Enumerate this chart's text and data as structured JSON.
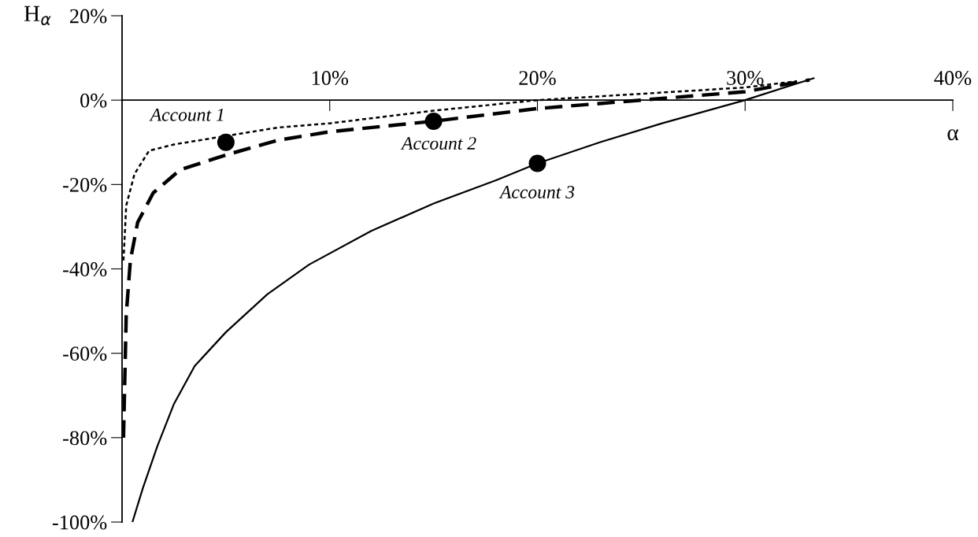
{
  "chart_data": {
    "type": "line",
    "xlabel": "α",
    "ylabel": "H$_{α}$",
    "xlim": [
      0,
      40
    ],
    "ylim": [
      -100,
      20
    ],
    "xticks": [
      {
        "value": 10,
        "label": "10%"
      },
      {
        "value": 20,
        "label": "20%"
      },
      {
        "value": 30,
        "label": "30%"
      },
      {
        "value": 40,
        "label": "40%"
      }
    ],
    "yticks": [
      {
        "value": -100,
        "label": "-100%"
      },
      {
        "value": -80,
        "label": "-80%"
      },
      {
        "value": -60,
        "label": "-60%"
      },
      {
        "value": -40,
        "label": "-40%"
      },
      {
        "value": -20,
        "label": "-20%"
      },
      {
        "value": 0,
        "label": "0%"
      },
      {
        "value": 20,
        "label": "20%"
      }
    ],
    "grid": false,
    "legend": false,
    "series": [
      {
        "color": "#000000",
        "line_style": "dotted",
        "x": [
          0.07,
          0.2,
          0.6,
          1.3,
          2.5,
          5,
          7.5,
          10,
          15,
          20,
          25,
          30,
          32.5
        ],
        "values": [
          -38,
          -25,
          -17.5,
          -12,
          -10.5,
          -8.5,
          -6.5,
          -5.5,
          -2.5,
          0,
          1.5,
          3,
          4.5
        ]
      },
      {
        "color": "#000000",
        "line_style": "dashed",
        "x": [
          0.07,
          0.2,
          0.4,
          0.75,
          1.5,
          2.8,
          5,
          7.5,
          10,
          15,
          20,
          25,
          30,
          33.1
        ],
        "values": [
          -80,
          -51,
          -38,
          -29,
          -22,
          -16.5,
          -13,
          -9.5,
          -7.5,
          -5,
          -2,
          0,
          2,
          4.8
        ]
      },
      {
        "color": "#000000",
        "line_style": "solid",
        "x": [
          0.5,
          1,
          1.7,
          2.5,
          3.5,
          5,
          7,
          9,
          12,
          15,
          18,
          20,
          23,
          26,
          30,
          33.3
        ],
        "values": [
          -100,
          -92,
          -82,
          -72,
          -63,
          -55,
          -46,
          -39,
          -31,
          -24.5,
          -19,
          -15,
          -10,
          -5.5,
          0,
          5.2
        ]
      },
      {
        "type": "scatter",
        "color": "#000000",
        "marker": "circle",
        "x": [
          5,
          15,
          20
        ],
        "values": [
          -10,
          -5,
          -15
        ]
      }
    ],
    "annotations": [
      {
        "text": "Account 1",
        "x": 5,
        "y": -10
      },
      {
        "text": "Account 2",
        "x": 15,
        "y": -5
      },
      {
        "text": "Account 3",
        "x": 20,
        "y": -15
      }
    ]
  }
}
